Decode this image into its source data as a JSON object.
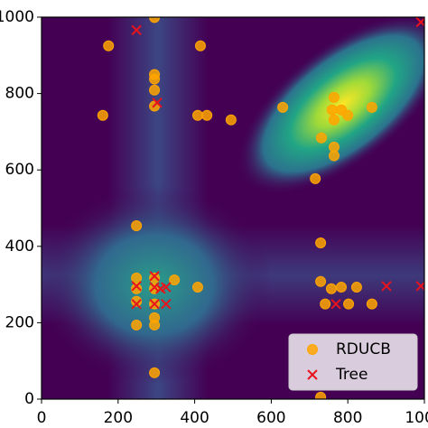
{
  "chart_data": {
    "type": "scatter",
    "xlim": [
      0,
      1000
    ],
    "ylim": [
      0,
      1000
    ],
    "xticks": [
      0,
      200,
      400,
      600,
      800,
      1000
    ],
    "yticks": [
      0,
      200,
      400,
      600,
      800,
      1000
    ],
    "legend": "lower right",
    "series": [
      {
        "name": "RDUCB",
        "color": "#ffa500",
        "marker": "o",
        "x": [
          175,
          415,
          295,
          295,
          295,
          295,
          295,
          160,
          408,
          432,
          495,
          630,
          731,
          764,
          759,
          783,
          800,
          764,
          863,
          764,
          764,
          715,
          729,
          248,
          248,
          248,
          248,
          248,
          295,
          295,
          295,
          295,
          295,
          347,
          408,
          729,
          757,
          783,
          823,
          741,
          802,
          863,
          295,
          729
        ],
        "y": [
          925,
          925,
          999,
          850,
          838,
          809,
          767,
          743,
          743,
          743,
          731,
          764,
          684,
          790,
          757,
          757,
          743,
          731,
          764,
          660,
          637,
          577,
          409,
          454,
          317,
          289,
          256,
          194,
          317,
          289,
          249,
          213,
          194,
          312,
          293,
          308,
          289,
          293,
          293,
          249,
          249,
          249,
          69,
          5
        ]
      },
      {
        "name": "Tree",
        "color": "#e8131c",
        "marker": "x",
        "x": [
          248,
          302,
          248,
          248,
          295,
          295,
          311,
          325,
          295,
          325,
          769,
          901,
          991,
          991
        ],
        "y": [
          966,
          776,
          296,
          249,
          322,
          293,
          289,
          293,
          249,
          249,
          249,
          296,
          296,
          987
        ]
      }
    ]
  }
}
